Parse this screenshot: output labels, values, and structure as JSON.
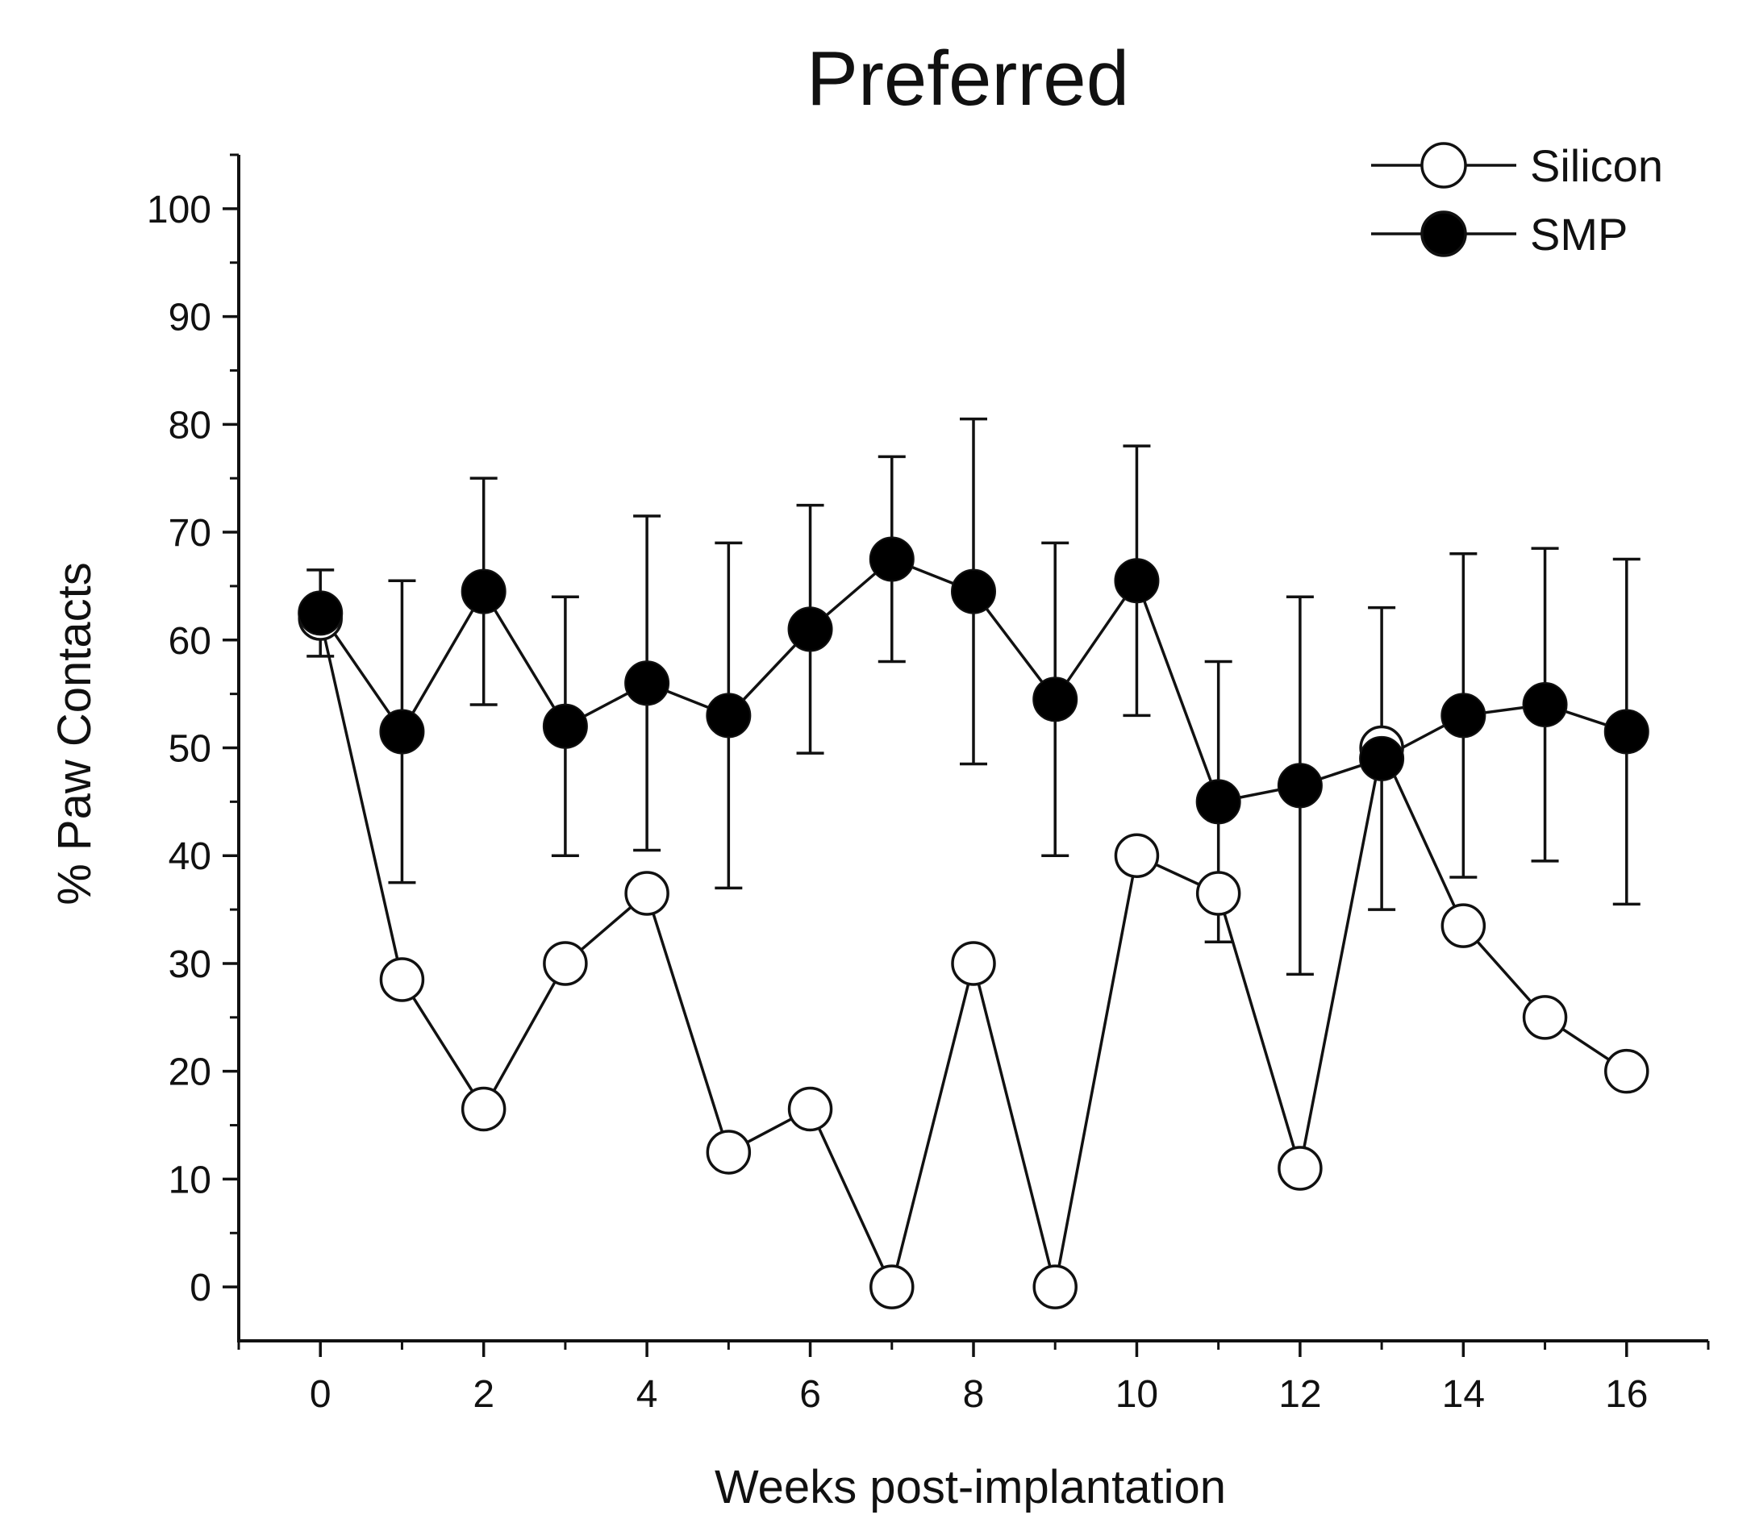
{
  "chart_data": {
    "type": "line",
    "title": "Preferred",
    "xlabel": "Weeks post-implantation",
    "ylabel": "% Paw Contacts",
    "xlim": [
      -1,
      17
    ],
    "ylim": [
      -5,
      105
    ],
    "x_ticks": [
      0,
      2,
      4,
      6,
      8,
      10,
      12,
      14,
      16
    ],
    "y_ticks": [
      0,
      10,
      20,
      30,
      40,
      50,
      60,
      70,
      80,
      90,
      100
    ],
    "x_tick_labels": [
      "0",
      "2",
      "4",
      "6",
      "8",
      "10",
      "12",
      "14",
      "16"
    ],
    "y_tick_labels": [
      "0",
      "10",
      "20",
      "30",
      "40",
      "50",
      "60",
      "70",
      "80",
      "90",
      "100"
    ],
    "legend_position": "top-right",
    "grid": false,
    "x": [
      0,
      1,
      2,
      3,
      4,
      5,
      6,
      7,
      8,
      9,
      10,
      11,
      12,
      13,
      14,
      15,
      16
    ],
    "series": [
      {
        "name": "Silicon",
        "marker": "open-circle",
        "values": [
          62,
          28.5,
          16.5,
          30,
          36.5,
          12.5,
          16.5,
          0,
          30,
          0,
          40,
          36.5,
          11,
          50,
          33.5,
          25,
          20
        ]
      },
      {
        "name": "SMP",
        "marker": "filled-circle",
        "values": [
          62.5,
          51.5,
          64.5,
          52,
          56,
          53,
          61,
          67.5,
          64.5,
          54.5,
          65.5,
          45,
          46.5,
          49,
          53,
          54,
          51.5
        ],
        "error": [
          4,
          14,
          10.5,
          12,
          15.5,
          16,
          11.5,
          9.5,
          16,
          14.5,
          12.5,
          13,
          17.5,
          14,
          15,
          14.5,
          16
        ]
      }
    ]
  }
}
